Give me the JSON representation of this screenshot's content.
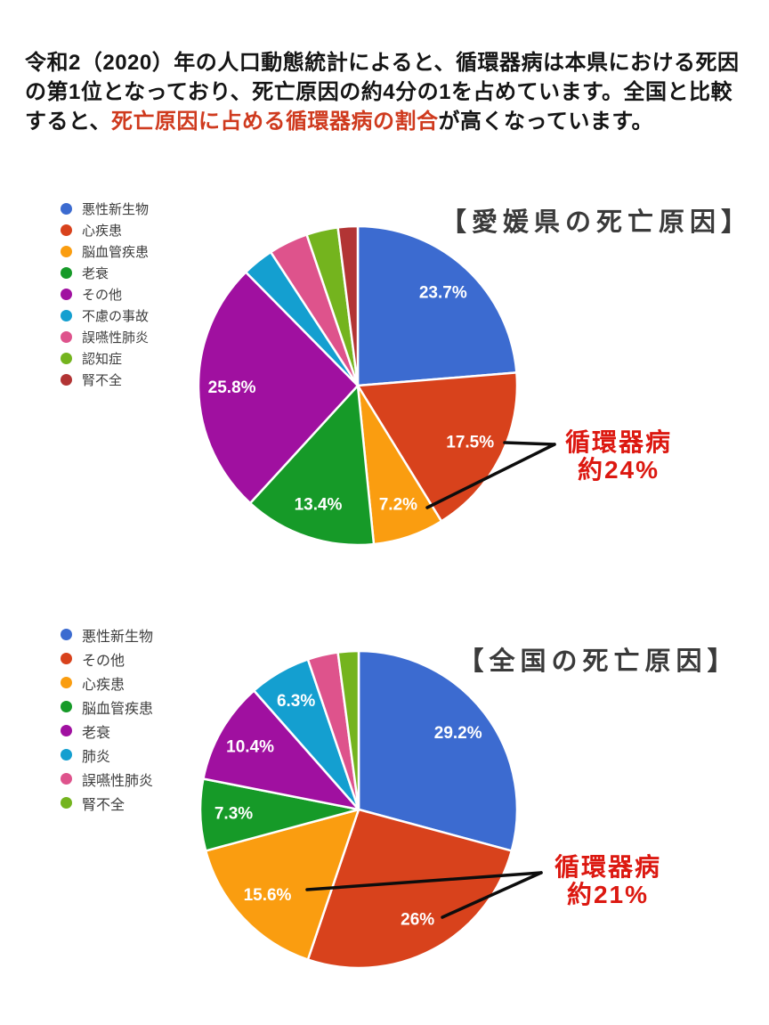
{
  "page": {
    "background": "#ffffff"
  },
  "intro": {
    "highlight_color": "#cf3a1e",
    "lines": [
      {
        "pre": "令和2（2020）年の人口動態統計によると、循環器病は本県における死因の",
        "highlight": "",
        "post": ""
      },
      {
        "pre": "第1位となっており、死亡原因の約4分の1を占めています。全国と比較する",
        "highlight": "",
        "post": ""
      },
      {
        "pre": "と、",
        "highlight": "死亡原因に占める循環器病の割合",
        "post": "が高くなっています。"
      }
    ]
  },
  "chart_data": [
    {
      "type": "pie",
      "title": "【愛媛県の死亡原因】",
      "legend_position": "left",
      "start_angle_deg": 0,
      "direction": "clockwise",
      "slices": [
        {
          "label": "悪性新生物",
          "value": 23.7,
          "display": "23.7%",
          "color": "#3c6bd0"
        },
        {
          "label": "心疾患",
          "value": 17.5,
          "display": "17.5%",
          "color": "#d8421c"
        },
        {
          "label": "脳血管疾患",
          "value": 7.2,
          "display": "7.2%",
          "color": "#fa9d10"
        },
        {
          "label": "老衰",
          "value": 13.4,
          "display": "13.4%",
          "color": "#169a28"
        },
        {
          "label": "その他",
          "value": 25.8,
          "display": "25.8%",
          "color": "#a010a0"
        },
        {
          "label": "不慮の事故",
          "value": 3.2,
          "display": "",
          "color": "#149fd0"
        },
        {
          "label": "誤嚥性肺炎",
          "value": 4.0,
          "display": "",
          "color": "#de538c"
        },
        {
          "label": "認知症",
          "value": 3.2,
          "display": "",
          "color": "#74b41e"
        },
        {
          "label": "腎不全",
          "value": 2.0,
          "display": "",
          "color": "#b23434"
        }
      ],
      "callout": {
        "line1": "循環器病",
        "line2": "約24%",
        "color": "#dc1810"
      }
    },
    {
      "type": "pie",
      "title": "【全国の死亡原因】",
      "legend_position": "left",
      "start_angle_deg": 0,
      "direction": "clockwise",
      "slices": [
        {
          "label": "悪性新生物",
          "value": 29.2,
          "display": "29.2%",
          "color": "#3c6bd0"
        },
        {
          "label": "その他",
          "value": 26.0,
          "display": "26%",
          "color": "#d8421c"
        },
        {
          "label": "心疾患",
          "value": 15.6,
          "display": "15.6%",
          "color": "#fa9d10"
        },
        {
          "label": "脳血管疾患",
          "value": 7.3,
          "display": "7.3%",
          "color": "#169a28"
        },
        {
          "label": "老衰",
          "value": 10.4,
          "display": "10.4%",
          "color": "#a010a0"
        },
        {
          "label": "肺炎",
          "value": 6.3,
          "display": "6.3%",
          "color": "#149fd0"
        },
        {
          "label": "誤嚥性肺炎",
          "value": 3.1,
          "display": "",
          "color": "#de538c"
        },
        {
          "label": "腎不全",
          "value": 2.1,
          "display": "",
          "color": "#74b41e"
        }
      ],
      "callout": {
        "line1": "循環器病",
        "line2": "約21%",
        "color": "#dc1810"
      }
    }
  ]
}
